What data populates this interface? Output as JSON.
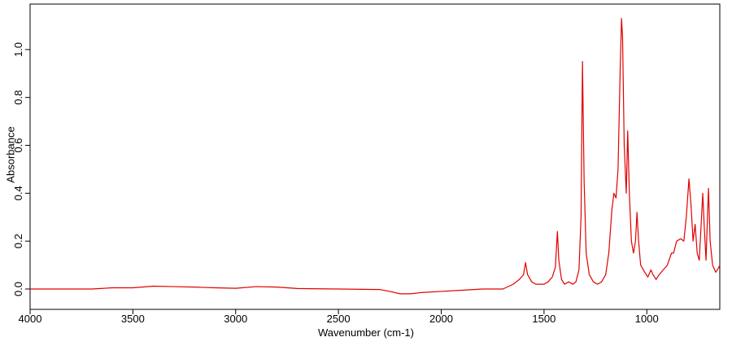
{
  "chart_data": {
    "type": "line",
    "x_label": "Wavenumber (cm-1)",
    "y_label": "Absorbance",
    "x": [
      4000,
      3700,
      3600,
      3500,
      3400,
      3300,
      3200,
      3100,
      3000,
      2900,
      2800,
      2700,
      2500,
      2300,
      2250,
      2200,
      2150,
      2100,
      2000,
      1900,
      1800,
      1700,
      1650,
      1620,
      1600,
      1590,
      1580,
      1560,
      1540,
      1520,
      1500,
      1480,
      1460,
      1445,
      1435,
      1428,
      1415,
      1400,
      1380,
      1360,
      1345,
      1330,
      1320,
      1313,
      1305,
      1295,
      1280,
      1260,
      1240,
      1220,
      1200,
      1185,
      1170,
      1160,
      1150,
      1140,
      1130,
      1123,
      1118,
      1110,
      1100,
      1093,
      1085,
      1075,
      1065,
      1055,
      1048,
      1040,
      1030,
      1010,
      995,
      980,
      970,
      955,
      940,
      920,
      900,
      880,
      870,
      855,
      835,
      820,
      808,
      795,
      785,
      775,
      765,
      755,
      745,
      735,
      728,
      720,
      712,
      705,
      700,
      692,
      680,
      665,
      650,
      645
    ],
    "series": [
      {
        "color": "#e00000",
        "values": [
          0.0,
          0.0,
          0.005,
          0.005,
          0.012,
          0.01,
          0.008,
          0.005,
          0.003,
          0.01,
          0.008,
          0.002,
          0.0,
          -0.002,
          -0.01,
          -0.02,
          -0.02,
          -0.015,
          -0.01,
          -0.005,
          0.0,
          0.0,
          0.02,
          0.04,
          0.06,
          0.11,
          0.06,
          0.03,
          0.02,
          0.02,
          0.02,
          0.03,
          0.05,
          0.09,
          0.24,
          0.12,
          0.04,
          0.02,
          0.03,
          0.02,
          0.03,
          0.08,
          0.3,
          0.95,
          0.45,
          0.15,
          0.06,
          0.03,
          0.02,
          0.03,
          0.06,
          0.15,
          0.33,
          0.4,
          0.38,
          0.5,
          0.9,
          1.13,
          1.05,
          0.6,
          0.4,
          0.66,
          0.4,
          0.2,
          0.15,
          0.2,
          0.32,
          0.2,
          0.1,
          0.07,
          0.05,
          0.08,
          0.06,
          0.04,
          0.06,
          0.08,
          0.1,
          0.15,
          0.15,
          0.2,
          0.21,
          0.2,
          0.3,
          0.46,
          0.35,
          0.2,
          0.27,
          0.15,
          0.12,
          0.28,
          0.4,
          0.25,
          0.12,
          0.3,
          0.42,
          0.2,
          0.1,
          0.07,
          0.09,
          0.1
        ]
      }
    ],
    "xlim": [
      4000,
      645
    ],
    "ylim": [
      -0.085,
      1.19
    ],
    "xticks": [
      4000,
      3500,
      3000,
      2500,
      2000,
      1500,
      1000
    ],
    "yticks": [
      {
        "value": 0,
        "label": "0.0"
      },
      {
        "value": 0.2,
        "label": "0.2"
      },
      {
        "value": 0.4,
        "label": "0.4"
      },
      {
        "value": 0.6,
        "label": "0.6"
      },
      {
        "value": 0.8,
        "label": "0.8"
      },
      {
        "value": 1,
        "label": "1.0"
      }
    ],
    "grid": false
  }
}
